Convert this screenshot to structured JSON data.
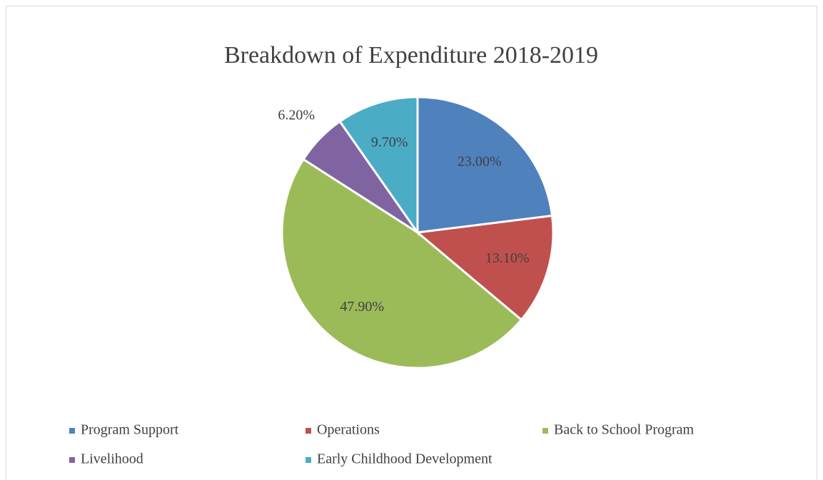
{
  "chart_data": {
    "type": "pie",
    "title": "Breakdown of Expenditure 2018-2019",
    "categories": [
      "Program Support",
      "Operations",
      "Back to School Program",
      "Livelihood",
      "Early Childhood Development"
    ],
    "values": [
      23.0,
      13.1,
      47.9,
      6.2,
      9.7
    ],
    "value_labels": [
      "23.00%",
      "13.10%",
      "47.90%",
      "6.20%",
      "9.70%"
    ],
    "colors": [
      "#4f81bd",
      "#c0504d",
      "#9bbb59",
      "#8064a2",
      "#4bacc6"
    ],
    "legend": "bottom"
  }
}
